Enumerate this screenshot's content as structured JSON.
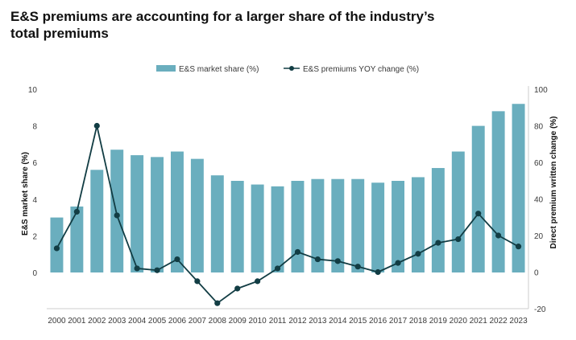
{
  "title": "E&S premiums are accounting for a larger share of the industry’s total premiums",
  "chart_data": {
    "type": "bar",
    "title": "E&S premiums are accounting for a larger share of the industry’s total premiums",
    "categories": [
      "2000",
      "2001",
      "2002",
      "2003",
      "2004",
      "2005",
      "2006",
      "2007",
      "2008",
      "2009",
      "2010",
      "2011",
      "2012",
      "2013",
      "2014",
      "2015",
      "2016",
      "2017",
      "2018",
      "2019",
      "2020",
      "2021",
      "2022",
      "2023"
    ],
    "series": [
      {
        "name": "E&S market share (%)",
        "type": "bar",
        "axis": "left",
        "color": "#6aaebe",
        "values": [
          3.0,
          3.6,
          5.6,
          6.7,
          6.4,
          6.3,
          6.6,
          6.2,
          5.3,
          5.0,
          4.8,
          4.7,
          5.0,
          5.1,
          5.1,
          5.1,
          4.9,
          5.0,
          5.2,
          5.7,
          6.6,
          8.0,
          8.8,
          9.2
        ]
      },
      {
        "name": "E&S premiums YOY change (%)",
        "type": "line",
        "axis": "right",
        "color": "#123d44",
        "values": [
          13,
          33,
          80,
          31,
          2,
          1,
          7,
          -5,
          -17,
          -9,
          -5,
          2,
          11,
          7,
          6,
          3,
          0,
          5,
          10,
          16,
          18,
          32,
          20,
          14
        ]
      }
    ],
    "ylabel": "E&S market share (%)",
    "y2label": "Direct premium written change (%)",
    "ylim": [
      0,
      10
    ],
    "yticks": [
      "0",
      "2",
      "4",
      "6",
      "8",
      "10"
    ],
    "y2lim": [
      -20,
      100
    ],
    "y2ticks": [
      "-20",
      "0",
      "20",
      "40",
      "60",
      "80",
      "100"
    ],
    "grid": false,
    "legend_position": "top-center"
  }
}
